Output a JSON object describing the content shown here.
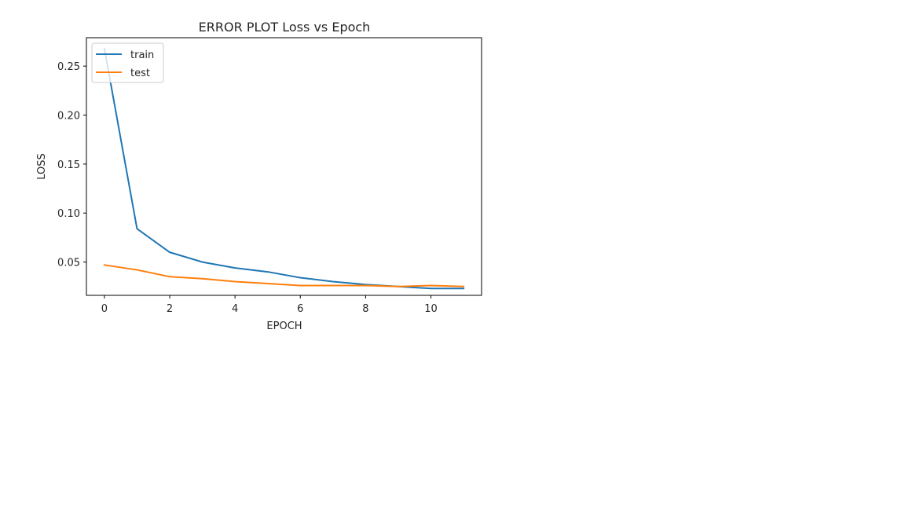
{
  "chart_data": {
    "type": "line",
    "title": "ERROR PLOT Loss vs Epoch",
    "xlabel": "EPOCH",
    "ylabel": "LOSS",
    "xlim": [
      -0.55,
      11.55
    ],
    "ylim": [
      0.016,
      0.279
    ],
    "xticks": [
      0,
      2,
      4,
      6,
      8,
      10
    ],
    "yticks": [
      0.05,
      0.1,
      0.15,
      0.2,
      0.25
    ],
    "xtick_labels": [
      "0",
      "2",
      "4",
      "6",
      "8",
      "10"
    ],
    "ytick_labels": [
      "0.05",
      "0.10",
      "0.15",
      "0.20",
      "0.25"
    ],
    "grid": false,
    "legend_position": "upper-left",
    "x": [
      0,
      1,
      2,
      3,
      4,
      5,
      6,
      7,
      8,
      9,
      10,
      11
    ],
    "series": [
      {
        "name": "train",
        "color": "#1f77b4",
        "values": [
          0.268,
          0.084,
          0.06,
          0.05,
          0.044,
          0.04,
          0.034,
          0.03,
          0.027,
          0.025,
          0.023,
          0.023
        ]
      },
      {
        "name": "test",
        "color": "#ff7f0e",
        "values": [
          0.047,
          0.042,
          0.035,
          0.033,
          0.03,
          0.028,
          0.026,
          0.026,
          0.026,
          0.025,
          0.026,
          0.025
        ]
      }
    ]
  }
}
